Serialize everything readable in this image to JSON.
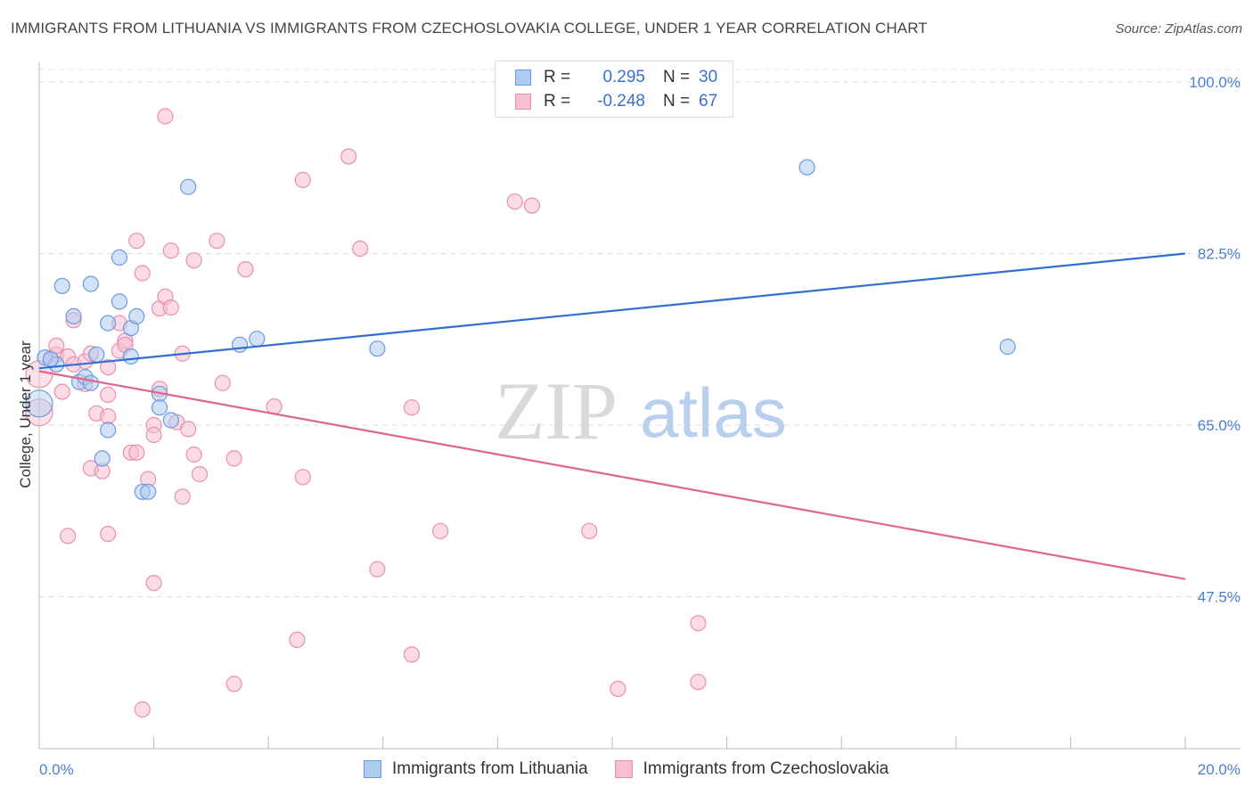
{
  "header": {
    "title": "IMMIGRANTS FROM LITHUANIA VS IMMIGRANTS FROM CZECHOSLOVAKIA COLLEGE, UNDER 1 YEAR CORRELATION CHART",
    "source": "Source: ZipAtlas.com"
  },
  "legend": {
    "r_label": "R =",
    "n_label": "N =",
    "series1": {
      "r": "0.295",
      "n": "30"
    },
    "series2": {
      "r": "-0.248",
      "n": "67"
    }
  },
  "watermark": {
    "zip": "ZIP",
    "atlas": "atlas"
  },
  "colors": {
    "blue_fill": "#aecbf0",
    "blue_stroke": "#6a9be0",
    "blue_line": "#2f6fd0",
    "pink_fill": "#f7bfd1",
    "pink_stroke": "#e98fae",
    "pink_line": "#e0668f"
  },
  "chart_data": {
    "type": "scatter",
    "title": "IMMIGRANTS FROM LITHUANIA VS IMMIGRANTS FROM CZECHOSLOVAKIA COLLEGE, UNDER 1 YEAR CORRELATION CHART",
    "xlabel": "",
    "ylabel": "College, Under 1 year",
    "xlim": [
      0,
      20
    ],
    "ylim": [
      32,
      102
    ],
    "x_tick_labels": [
      "0.0%",
      "20.0%"
    ],
    "y_ticks": [
      47.5,
      65.0,
      82.5,
      100.0
    ],
    "y_tick_labels": [
      "47.5%",
      "65.0%",
      "82.5%",
      "100.0%"
    ],
    "series": [
      {
        "name": "Immigrants from Lithuania",
        "color": "blue",
        "points": [
          [
            0.0,
            67.2
          ],
          [
            0.1,
            71.9
          ],
          [
            0.3,
            71.2
          ],
          [
            0.4,
            79.2
          ],
          [
            0.6,
            76.1
          ],
          [
            0.7,
            69.4
          ],
          [
            0.8,
            69.9
          ],
          [
            0.9,
            79.4
          ],
          [
            1.0,
            72.2
          ],
          [
            1.1,
            61.6
          ],
          [
            1.2,
            75.4
          ],
          [
            1.2,
            64.5
          ],
          [
            1.4,
            82.1
          ],
          [
            1.4,
            77.6
          ],
          [
            1.6,
            72.0
          ],
          [
            1.6,
            74.9
          ],
          [
            1.7,
            76.1
          ],
          [
            1.8,
            58.2
          ],
          [
            1.9,
            58.2
          ],
          [
            2.1,
            68.2
          ],
          [
            2.1,
            66.8
          ],
          [
            2.3,
            65.5
          ],
          [
            2.6,
            89.3
          ],
          [
            3.5,
            73.2
          ],
          [
            3.8,
            73.8
          ],
          [
            5.9,
            72.8
          ],
          [
            13.4,
            91.3
          ],
          [
            16.9,
            73.0
          ],
          [
            0.2,
            71.7
          ],
          [
            0.9,
            69.3
          ]
        ],
        "trend": {
          "x": [
            0,
            20
          ],
          "y": [
            70.8,
            82.5
          ]
        }
      },
      {
        "name": "Immigrants from Czechoslovakia",
        "color": "pink",
        "points": [
          [
            0.0,
            66.3
          ],
          [
            0.0,
            70.2
          ],
          [
            0.2,
            71.8
          ],
          [
            0.3,
            72.2
          ],
          [
            0.3,
            73.1
          ],
          [
            0.4,
            68.4
          ],
          [
            0.5,
            53.7
          ],
          [
            0.5,
            72.0
          ],
          [
            0.6,
            75.7
          ],
          [
            0.6,
            71.2
          ],
          [
            0.8,
            71.5
          ],
          [
            0.8,
            69.2
          ],
          [
            0.9,
            72.3
          ],
          [
            0.9,
            60.6
          ],
          [
            1.0,
            66.2
          ],
          [
            1.1,
            60.3
          ],
          [
            1.2,
            53.9
          ],
          [
            1.2,
            65.9
          ],
          [
            1.2,
            68.1
          ],
          [
            1.4,
            75.4
          ],
          [
            1.4,
            72.6
          ],
          [
            1.5,
            73.6
          ],
          [
            1.5,
            73.2
          ],
          [
            1.6,
            62.2
          ],
          [
            1.7,
            62.2
          ],
          [
            1.7,
            83.8
          ],
          [
            1.8,
            80.5
          ],
          [
            1.8,
            36.0
          ],
          [
            1.9,
            59.5
          ],
          [
            2.0,
            65.0
          ],
          [
            2.0,
            48.9
          ],
          [
            2.1,
            68.7
          ],
          [
            2.1,
            76.9
          ],
          [
            2.2,
            78.1
          ],
          [
            2.2,
            96.5
          ],
          [
            2.3,
            82.8
          ],
          [
            2.3,
            77.0
          ],
          [
            2.4,
            65.3
          ],
          [
            2.5,
            57.7
          ],
          [
            2.5,
            72.3
          ],
          [
            2.6,
            64.6
          ],
          [
            2.7,
            81.8
          ],
          [
            2.7,
            62.0
          ],
          [
            2.8,
            60.0
          ],
          [
            3.1,
            83.8
          ],
          [
            3.2,
            69.3
          ],
          [
            3.4,
            61.6
          ],
          [
            3.4,
            38.6
          ],
          [
            3.6,
            80.9
          ],
          [
            4.1,
            66.9
          ],
          [
            4.5,
            43.1
          ],
          [
            4.6,
            59.7
          ],
          [
            4.6,
            90.0
          ],
          [
            5.4,
            92.4
          ],
          [
            5.6,
            83.0
          ],
          [
            5.9,
            50.3
          ],
          [
            6.5,
            66.8
          ],
          [
            6.5,
            41.6
          ],
          [
            7.0,
            54.2
          ],
          [
            8.3,
            87.8
          ],
          [
            8.6,
            87.4
          ],
          [
            9.6,
            54.2
          ],
          [
            10.1,
            38.1
          ],
          [
            11.5,
            38.8
          ],
          [
            11.5,
            44.8
          ],
          [
            2.0,
            64.0
          ],
          [
            1.2,
            70.9
          ]
        ],
        "trend": {
          "x": [
            0,
            20
          ],
          "y": [
            70.5,
            49.3
          ]
        }
      }
    ]
  }
}
